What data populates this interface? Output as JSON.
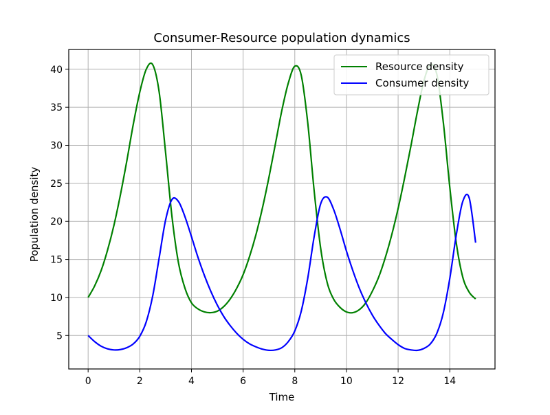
{
  "chart_data": {
    "type": "line",
    "title": "Consumer-Resource population dynamics",
    "xlabel": "Time",
    "ylabel": "Population density",
    "xlim": [
      -0.75,
      15.75
    ],
    "ylim": [
      0.6,
      42.6
    ],
    "xticks": [
      0,
      2,
      4,
      6,
      8,
      10,
      12,
      14
    ],
    "yticks": [
      5,
      10,
      15,
      20,
      25,
      30,
      35,
      40
    ],
    "grid": true,
    "legend_position": "top-right",
    "series": [
      {
        "name": "Resource density",
        "color": "#008000",
        "x": [
          0,
          0.25,
          0.5,
          0.75,
          1.0,
          1.25,
          1.5,
          1.75,
          2.0,
          2.25,
          2.5,
          2.75,
          3.0,
          3.25,
          3.5,
          3.75,
          4.0,
          4.25,
          4.5,
          4.75,
          5.0,
          5.25,
          5.5,
          5.75,
          6.0,
          6.25,
          6.5,
          6.75,
          7.0,
          7.25,
          7.5,
          7.75,
          8.0,
          8.25,
          8.5,
          8.75,
          9.0,
          9.25,
          9.5,
          9.75,
          10.0,
          10.25,
          10.5,
          10.75,
          11.0,
          11.25,
          11.5,
          11.75,
          12.0,
          12.25,
          12.5,
          12.75,
          13.0,
          13.25,
          13.5,
          13.75,
          14.0,
          14.25,
          14.5,
          14.75,
          15.0
        ],
        "y": [
          10.0,
          11.5,
          13.5,
          16.2,
          19.5,
          23.5,
          28.0,
          32.8,
          37.0,
          40.0,
          40.6,
          37.0,
          29.0,
          20.5,
          14.5,
          11.2,
          9.3,
          8.5,
          8.1,
          8.0,
          8.2,
          8.8,
          9.8,
          11.2,
          13.0,
          15.4,
          18.3,
          21.8,
          25.8,
          30.2,
          34.6,
          38.2,
          40.4,
          39.2,
          33.0,
          24.0,
          16.5,
          12.0,
          9.8,
          8.7,
          8.1,
          8.0,
          8.4,
          9.3,
          10.8,
          12.7,
          15.2,
          18.2,
          21.7,
          25.7,
          30.0,
          34.5,
          38.5,
          40.6,
          39.3,
          33.0,
          24.5,
          17.2,
          12.7,
          10.7,
          9.8
        ]
      },
      {
        "name": "Consumer density",
        "color": "#0000ff",
        "x": [
          0,
          0.25,
          0.5,
          0.75,
          1.0,
          1.25,
          1.5,
          1.75,
          2.0,
          2.25,
          2.5,
          2.75,
          3.0,
          3.25,
          3.5,
          3.75,
          4.0,
          4.25,
          4.5,
          4.75,
          5.0,
          5.25,
          5.5,
          5.75,
          6.0,
          6.25,
          6.5,
          6.75,
          7.0,
          7.25,
          7.5,
          7.75,
          8.0,
          8.25,
          8.5,
          8.75,
          9.0,
          9.25,
          9.5,
          9.75,
          10.0,
          10.25,
          10.5,
          10.75,
          11.0,
          11.25,
          11.5,
          11.75,
          12.0,
          12.25,
          12.5,
          12.75,
          13.0,
          13.25,
          13.5,
          13.75,
          14.0,
          14.25,
          14.5,
          14.75,
          15.0
        ],
        "y": [
          5.0,
          4.2,
          3.6,
          3.25,
          3.1,
          3.15,
          3.4,
          3.9,
          4.9,
          6.8,
          10.2,
          15.2,
          20.2,
          22.9,
          22.6,
          20.6,
          18.0,
          15.3,
          12.9,
          10.8,
          9.0,
          7.5,
          6.3,
          5.3,
          4.5,
          3.9,
          3.5,
          3.2,
          3.05,
          3.1,
          3.4,
          4.2,
          5.6,
          8.2,
          12.5,
          18.0,
          22.3,
          23.2,
          21.6,
          19.0,
          16.1,
          13.5,
          11.2,
          9.3,
          7.7,
          6.4,
          5.3,
          4.5,
          3.8,
          3.3,
          3.1,
          3.05,
          3.3,
          3.9,
          5.3,
          8.0,
          12.5,
          18.2,
          22.6,
          23.1,
          17.2
        ]
      }
    ]
  }
}
